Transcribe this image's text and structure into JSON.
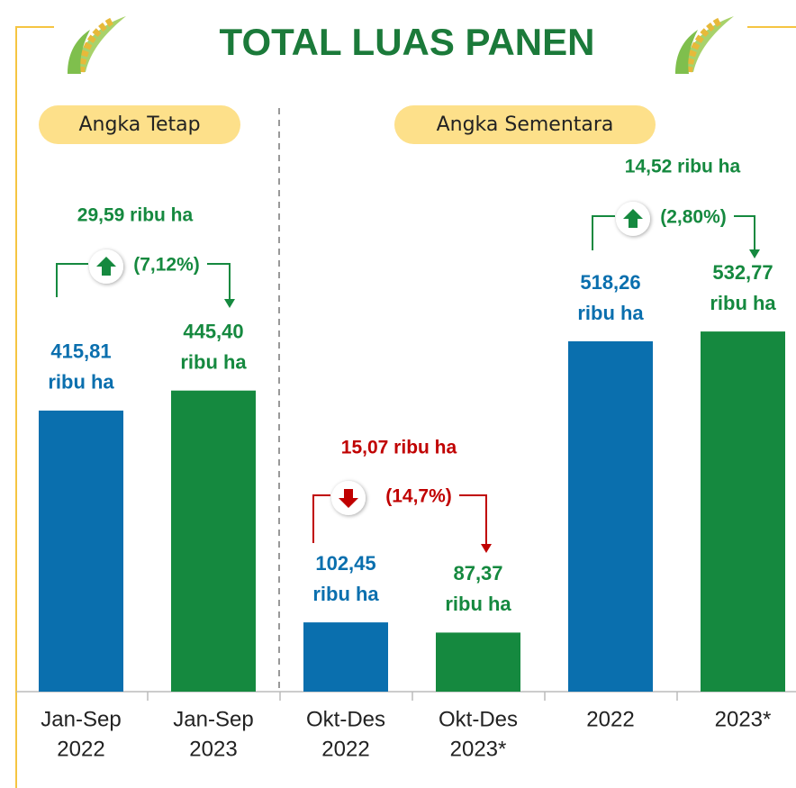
{
  "chart_data": {
    "type": "bar",
    "title": "TOTAL LUAS PANEN",
    "groups": [
      "Angka Tetap",
      "Angka Sementara"
    ],
    "categories": [
      [
        "Jan-Sep",
        "2022"
      ],
      [
        "Jan-Sep",
        "2023"
      ],
      [
        "Okt-Des",
        "2022"
      ],
      [
        "Okt-Des",
        "2023*"
      ],
      [
        "2022"
      ],
      [
        "2023*"
      ]
    ],
    "values": [
      415.81,
      445.4,
      102.45,
      87.37,
      518.26,
      532.77
    ],
    "value_labels": [
      [
        "415,81",
        "ribu ha"
      ],
      [
        "445,40",
        "ribu ha"
      ],
      [
        "102,45",
        "ribu ha"
      ],
      [
        "87,37",
        "ribu ha"
      ],
      [
        "518,26",
        "ribu ha"
      ],
      [
        "532,77",
        "ribu ha"
      ]
    ],
    "colors": [
      "#0a6fae",
      "#15893f",
      "#0a6fae",
      "#15893f",
      "#0a6fae",
      "#15893f"
    ],
    "annotations": [
      {
        "text": "29,59 ribu ha",
        "percent": "(7,12%)",
        "direction": "up"
      },
      {
        "text": "15,07 ribu ha",
        "percent": "(14,7%)",
        "direction": "down"
      },
      {
        "text": "14,52 ribu ha",
        "percent": "(2,80%)",
        "direction": "up"
      }
    ]
  }
}
